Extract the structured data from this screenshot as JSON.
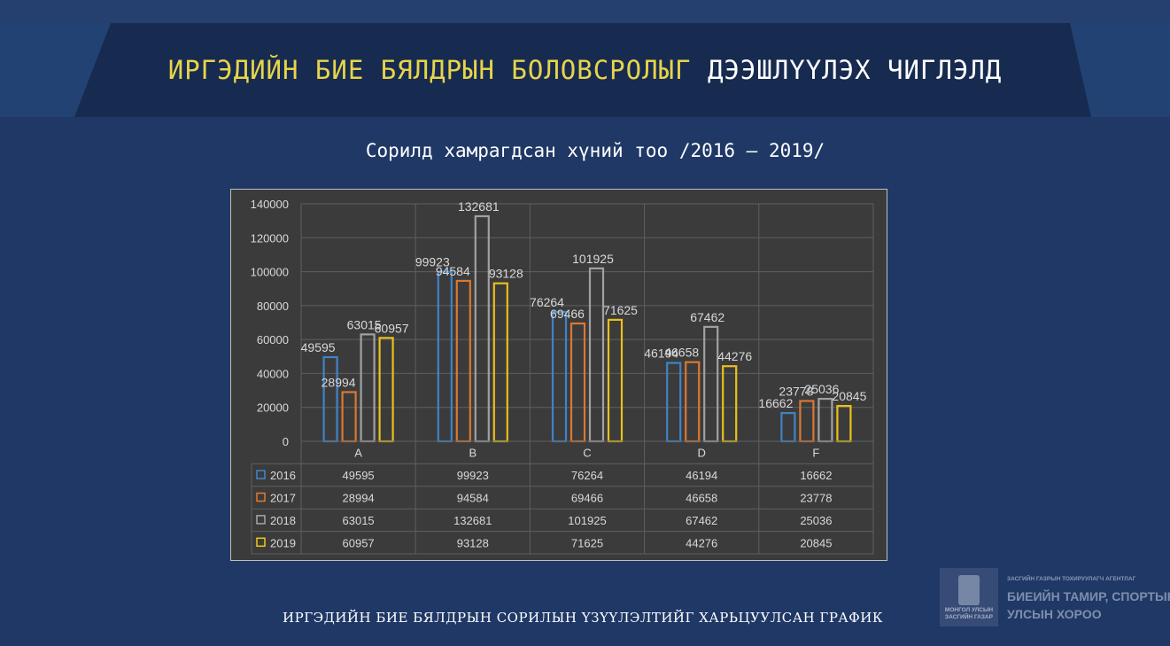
{
  "header": {
    "title_part1": "ИРГЭДИЙН БИЕ БЯЛДРЫН БОЛОВСРОЛЫГ",
    "title_part2": "ДЭЭШЛҮҮЛЭХ ЧИГЛЭЛД"
  },
  "subtitle": "Сорилд хамрагдсан хүний тоо /2016 – 2019/",
  "footer_caption": "ИРГЭДИЙН БИЕ БЯЛДРЫН СОРИЛЫН ҮЗҮҮЛЭЛТИЙГ ХАРЬЦУУЛСАН ГРАФИК",
  "logo": {
    "emblem_caption_line1": "МОНГОЛ УЛСЫН",
    "emblem_caption_line2": "ЗАСГИЙН ГАЗАР",
    "agency_line": "ЗАСГИЙН ГАЗРЫН ТОХИРУУЛАГЧ АГЕНТЛАГ",
    "name_line1": "БИЕИЙН ТАМИР, СПОРТЫН",
    "name_line2": "УЛСЫН ХОРОО"
  },
  "colors": {
    "page_background": "#1f3866",
    "header_band": "#172b50",
    "title_accent": "#e8d44a",
    "chart_background": "#3b3b3b"
  },
  "chart_data": {
    "type": "bar",
    "categories": [
      "A",
      "B",
      "C",
      "D",
      "F"
    ],
    "series": [
      {
        "name": "2016",
        "color": "#3f87d0",
        "values": [
          49595,
          99923,
          76264,
          46194,
          16662
        ]
      },
      {
        "name": "2017",
        "color": "#e37b30",
        "values": [
          28994,
          94584,
          69466,
          46658,
          23778
        ]
      },
      {
        "name": "2018",
        "color": "#a6a6a6",
        "values": [
          63015,
          132681,
          101925,
          67462,
          25036
        ]
      },
      {
        "name": "2019",
        "color": "#f2c719",
        "values": [
          60957,
          93128,
          71625,
          44276,
          20845
        ]
      }
    ],
    "yticks": [
      0,
      20000,
      40000,
      60000,
      80000,
      100000,
      120000,
      140000
    ],
    "ylim": [
      0,
      140000
    ],
    "grid": true,
    "data_labels": true,
    "legend": "data table below chart"
  }
}
